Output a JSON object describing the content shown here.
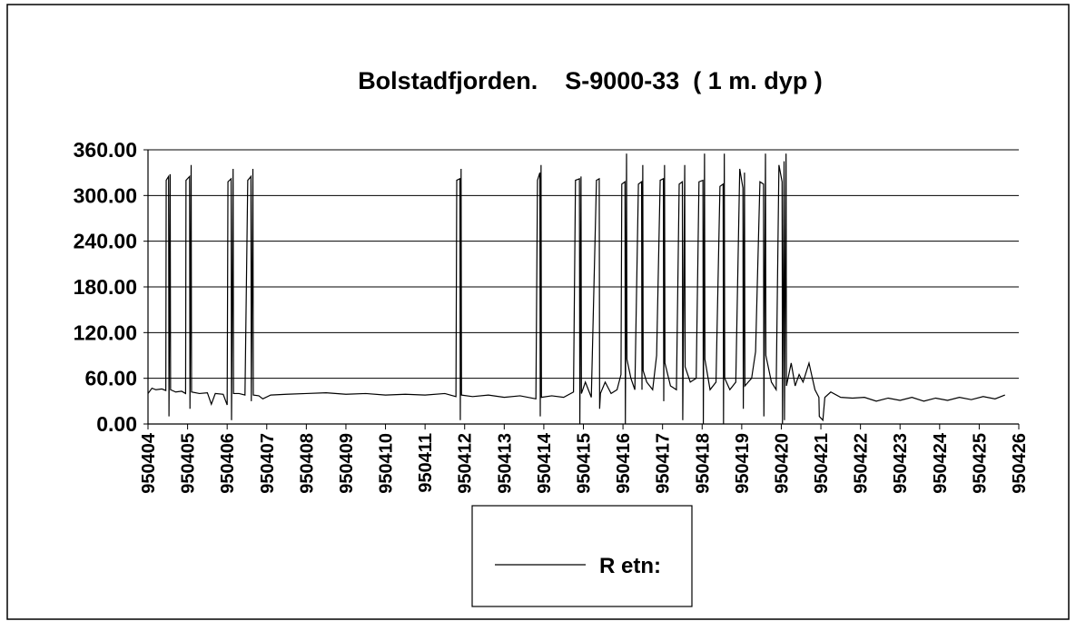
{
  "chart_data": {
    "type": "line",
    "title": "Bolstadfjorden.    S-9000-33  ( 1 m. dyp )",
    "xlim": [
      0,
      22
    ],
    "xticks": [
      {
        "value": 0,
        "label": "950404"
      },
      {
        "value": 1,
        "label": "950405"
      },
      {
        "value": 2,
        "label": "950406"
      },
      {
        "value": 3,
        "label": "950407"
      },
      {
        "value": 4,
        "label": "950408"
      },
      {
        "value": 5,
        "label": "950409"
      },
      {
        "value": 6,
        "label": "950410"
      },
      {
        "value": 7,
        "label": "950411"
      },
      {
        "value": 8,
        "label": "950412"
      },
      {
        "value": 9,
        "label": "950413"
      },
      {
        "value": 10,
        "label": "950414"
      },
      {
        "value": 11,
        "label": "950415"
      },
      {
        "value": 12,
        "label": "950416"
      },
      {
        "value": 13,
        "label": "950417"
      },
      {
        "value": 14,
        "label": "950418"
      },
      {
        "value": 15,
        "label": "950419"
      },
      {
        "value": 16,
        "label": "950420"
      },
      {
        "value": 17,
        "label": "950421"
      },
      {
        "value": 18,
        "label": "950422"
      },
      {
        "value": 19,
        "label": "950423"
      },
      {
        "value": 20,
        "label": "950424"
      },
      {
        "value": 21,
        "label": "950425"
      },
      {
        "value": 22,
        "label": "950426"
      }
    ],
    "ylim": [
      0,
      360
    ],
    "yticks": [
      {
        "value": 0,
        "label": "0.00"
      },
      {
        "value": 60,
        "label": "60.00"
      },
      {
        "value": 120,
        "label": "120.00"
      },
      {
        "value": 180,
        "label": "180.00"
      },
      {
        "value": 240,
        "label": "240.00"
      },
      {
        "value": 300,
        "label": "300.00"
      },
      {
        "value": 360,
        "label": "360.00"
      }
    ],
    "grid": true,
    "legend": "bottom",
    "x": [
      0,
      0.1,
      0.2,
      0.35,
      0.45,
      0.46,
      0.52,
      0.53,
      0.56,
      0.57,
      0.7,
      0.85,
      0.95,
      0.96,
      1.05,
      1.06,
      1.09,
      1.1,
      1.3,
      1.5,
      1.6,
      1.7,
      1.9,
      2.0,
      2.02,
      2.1,
      2.11,
      2.15,
      2.16,
      2.3,
      2.45,
      2.52,
      2.6,
      2.61,
      2.65,
      2.66,
      2.8,
      2.9,
      3.1,
      3.5,
      4,
      4.5,
      5,
      5.5,
      6,
      6.5,
      7,
      7.5,
      7.78,
      7.8,
      7.88,
      7.89,
      7.91,
      7.92,
      8.2,
      8.6,
      9,
      9.4,
      9.8,
      9.84,
      9.9,
      9.91,
      9.93,
      9.94,
      10.2,
      10.5,
      10.75,
      10.8,
      10.9,
      10.91,
      10.94,
      10.95,
      11.05,
      11.2,
      11.33,
      11.4,
      11.41,
      11.43,
      11.55,
      11.7,
      11.85,
      11.95,
      11.97,
      12.05,
      12.06,
      12.09,
      12.1,
      12.2,
      12.3,
      12.39,
      12.47,
      12.48,
      12.5,
      12.51,
      12.6,
      12.75,
      12.85,
      12.94,
      13.02,
      13.03,
      13.05,
      13.06,
      13.2,
      13.35,
      13.42,
      13.5,
      13.51,
      13.56,
      13.57,
      13.7,
      13.85,
      13.92,
      14.02,
      14.03,
      14.06,
      14.07,
      14.2,
      14.35,
      14.45,
      14.53,
      14.54,
      14.56,
      14.57,
      14.7,
      14.85,
      14.95,
      15.03,
      15.04,
      15.07,
      15.08,
      15.25,
      15.35,
      15.46,
      15.55,
      15.56,
      15.6,
      15.61,
      15.75,
      15.87,
      15.94,
      16.02,
      16.03,
      16.07,
      16.08,
      16.12,
      16.13,
      16.25,
      16.35,
      16.45,
      16.55,
      16.7,
      16.85,
      16.95,
      16.96,
      17.05,
      17.1,
      17.25,
      17.5,
      17.8,
      18.1,
      18.4,
      18.7,
      19,
      19.3,
      19.6,
      19.9,
      20.2,
      20.5,
      20.8,
      21.1,
      21.4,
      21.65
    ],
    "series": [
      {
        "name": "R etn:",
        "color": "#000000",
        "values": [
          40,
          47,
          45,
          46,
          44,
          320,
          325,
          10,
          328,
          45,
          42,
          43,
          40,
          320,
          325,
          20,
          340,
          42,
          40,
          41,
          26,
          40,
          39,
          25,
          318,
          322,
          5,
          335,
          40,
          40,
          38,
          320,
          325,
          30,
          335,
          38,
          37,
          33,
          38,
          39,
          40,
          41,
          39,
          40,
          38,
          39,
          38,
          40,
          36,
          320,
          322,
          5,
          335,
          38,
          36,
          38,
          35,
          37,
          33,
          320,
          330,
          10,
          340,
          35,
          37,
          35,
          42,
          320,
          322,
          0,
          325,
          40,
          55,
          35,
          320,
          322,
          20,
          40,
          55,
          40,
          45,
          65,
          315,
          318,
          0,
          355,
          85,
          60,
          45,
          315,
          318,
          45,
          340,
          70,
          55,
          45,
          90,
          320,
          322,
          30,
          340,
          80,
          50,
          45,
          315,
          318,
          5,
          340,
          75,
          55,
          60,
          318,
          320,
          0,
          355,
          85,
          45,
          55,
          312,
          315,
          0,
          355,
          60,
          45,
          55,
          335,
          310,
          20,
          330,
          50,
          60,
          95,
          318,
          315,
          10,
          355,
          90,
          55,
          45,
          340,
          318,
          0,
          345,
          5,
          355,
          50,
          80,
          50,
          65,
          55,
          80,
          45,
          35,
          10,
          5,
          35,
          42,
          35,
          34,
          35,
          30,
          34,
          31,
          35,
          30,
          34,
          31,
          35,
          32,
          36,
          33,
          38
        ]
      }
    ]
  }
}
